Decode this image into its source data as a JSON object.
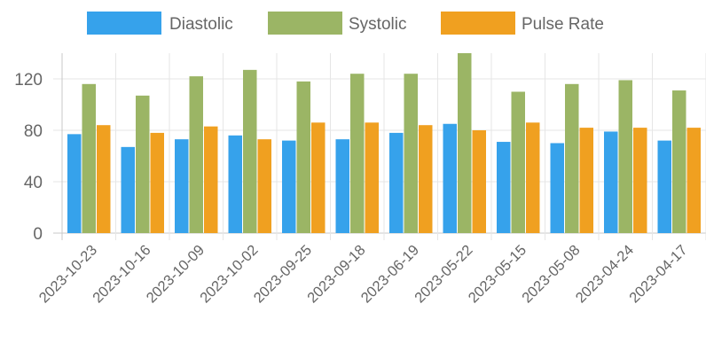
{
  "chart_data": {
    "type": "bar",
    "categories": [
      "2023-10-23",
      "2023-10-16",
      "2023-10-09",
      "2023-10-02",
      "2023-09-25",
      "2023-09-18",
      "2023-06-19",
      "2023-05-22",
      "2023-05-15",
      "2023-05-08",
      "2023-04-24",
      "2023-04-17"
    ],
    "series": [
      {
        "name": "Diastolic",
        "color": "#36a2eb",
        "values": [
          77,
          67,
          73,
          76,
          72,
          73,
          78,
          85,
          71,
          70,
          79,
          72
        ]
      },
      {
        "name": "Systolic",
        "color": "#9bb565",
        "values": [
          116,
          107,
          122,
          127,
          118,
          124,
          124,
          140,
          110,
          116,
          119,
          111
        ]
      },
      {
        "name": "Pulse Rate",
        "color": "#f0a020",
        "values": [
          84,
          78,
          83,
          73,
          86,
          86,
          84,
          80,
          86,
          82,
          82,
          82
        ]
      }
    ],
    "yticks": [
      0,
      40,
      80,
      120
    ],
    "ylim": [
      0,
      140
    ],
    "legend": "top",
    "grid": true,
    "title": "",
    "xlabel": "",
    "ylabel": ""
  }
}
